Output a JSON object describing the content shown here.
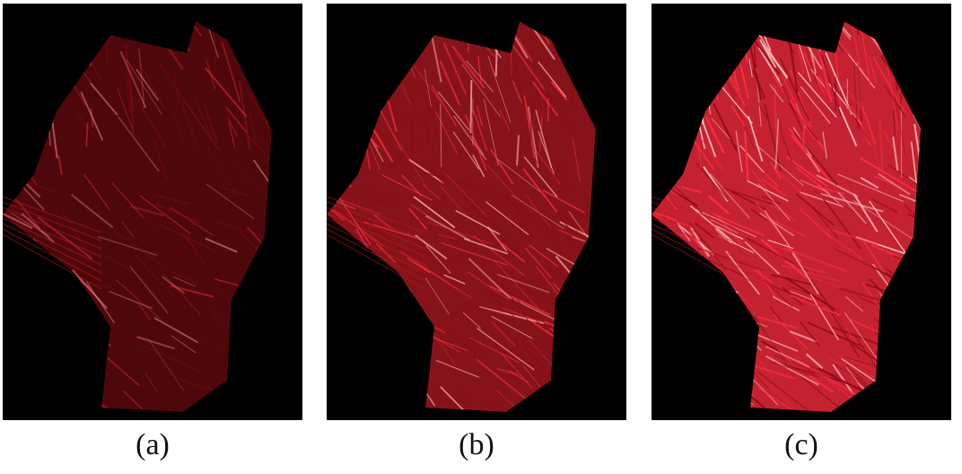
{
  "panels": [
    {
      "id": "a",
      "caption": "(a)",
      "style": "sparse",
      "base_color": "#e01820",
      "highlight_color": "#ff9a9a",
      "opacity": 0.55
    },
    {
      "id": "b",
      "caption": "(b)",
      "style": "medium",
      "base_color": "#e0202a",
      "highlight_color": "#ffb0b0",
      "opacity": 0.8
    },
    {
      "id": "c",
      "caption": "(c)",
      "style": "dense",
      "base_color": "#e8283a",
      "highlight_color": "#ffc8c8",
      "opacity": 0.95
    }
  ],
  "background_color": "#000000"
}
